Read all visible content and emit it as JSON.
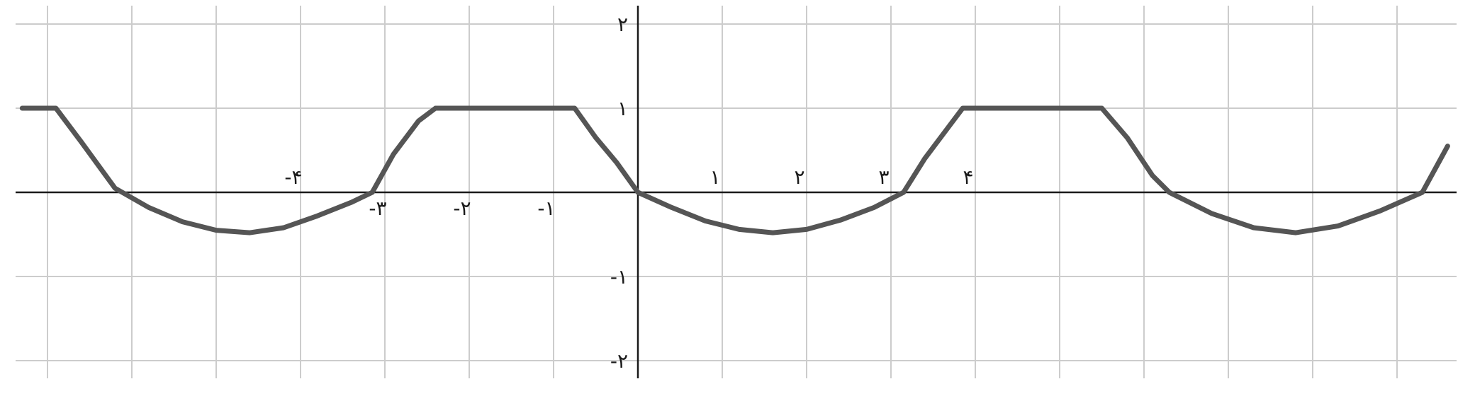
{
  "chart_data": {
    "type": "line",
    "title": "",
    "xlabel": "",
    "ylabel": "",
    "xlim": [
      -7.3,
      9.6
    ],
    "ylim": [
      -2.2,
      2.2
    ],
    "grid": true,
    "x_ticks": [
      {
        "value": -4,
        "label": "-۴"
      },
      {
        "value": -3,
        "label": "-۳"
      },
      {
        "value": -2,
        "label": "-۲"
      },
      {
        "value": -1,
        "label": "-۱"
      },
      {
        "value": 1,
        "label": "۱"
      },
      {
        "value": 2,
        "label": "۲"
      },
      {
        "value": 3,
        "label": "۳"
      },
      {
        "value": 4,
        "label": "۴"
      }
    ],
    "y_ticks": [
      {
        "value": 2,
        "label": "۲"
      },
      {
        "value": 1,
        "label": "۱"
      },
      {
        "value": -1,
        "label": "-۱"
      },
      {
        "value": -2,
        "label": "-۲"
      }
    ],
    "series": [
      {
        "color": "#555555",
        "x": [
          -7.3,
          -6.9,
          -6.6,
          -6.2,
          -5.8,
          -5.4,
          -5.0,
          -4.6,
          -4.2,
          -3.8,
          -3.4,
          -3.15,
          -2.9,
          -2.6,
          -2.4,
          -0.75,
          -0.5,
          -0.25,
          0.0,
          0.4,
          0.8,
          1.2,
          1.6,
          2.0,
          2.4,
          2.8,
          3.15,
          3.4,
          3.7,
          3.85,
          5.5,
          5.8,
          6.1,
          6.3,
          6.8,
          7.3,
          7.8,
          8.3,
          8.8,
          9.3,
          9.6
        ],
        "y": [
          1.0,
          1.0,
          0.6,
          0.05,
          -0.18,
          -0.35,
          -0.45,
          -0.48,
          -0.42,
          -0.28,
          -0.12,
          0.0,
          0.45,
          0.85,
          1.0,
          1.0,
          0.65,
          0.35,
          0.0,
          -0.18,
          -0.34,
          -0.44,
          -0.48,
          -0.44,
          -0.33,
          -0.18,
          0.0,
          0.4,
          0.8,
          1.0,
          1.0,
          0.65,
          0.2,
          0.0,
          -0.25,
          -0.42,
          -0.48,
          -0.4,
          -0.22,
          0.0,
          0.55
        ]
      }
    ]
  }
}
